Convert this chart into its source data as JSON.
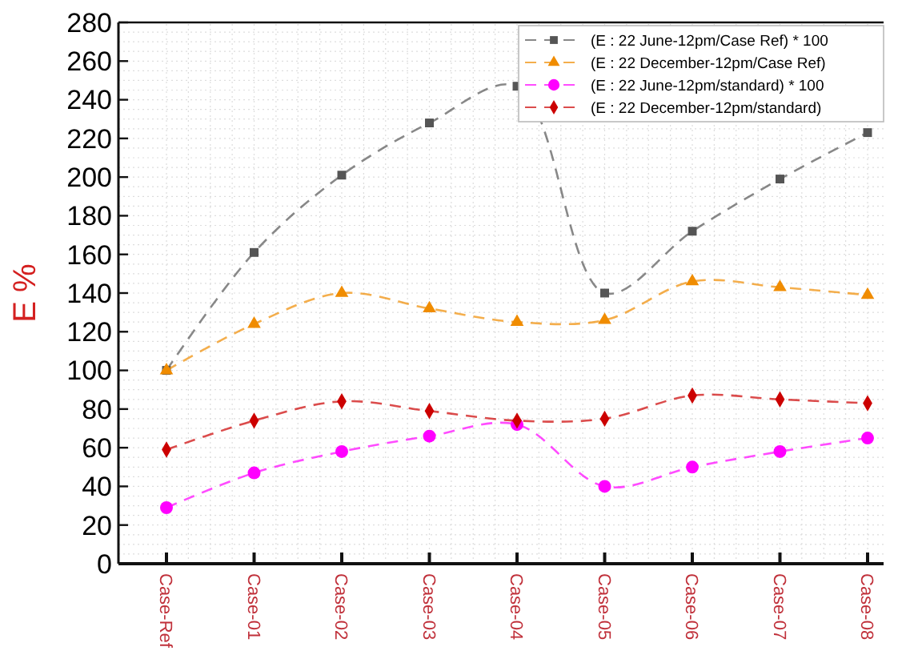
{
  "chart_data": {
    "type": "line",
    "ylabel": "E %",
    "categories": [
      "Case-Ref",
      "Case-01",
      "Case-02",
      "Case-03",
      "Case-04",
      "Case-05",
      "Case-06",
      "Case-07",
      "Case-08"
    ],
    "series": [
      {
        "name": "(E : 22 June-12pm/Case Ref) * 100",
        "color": "#555555",
        "marker": "square",
        "line_style": "dashed",
        "values": [
          100,
          161,
          201,
          228,
          247,
          140,
          172,
          199,
          223
        ]
      },
      {
        "name": "(E : 22 December-12pm/Case Ref)",
        "color": "#f08c00",
        "marker": "triangle",
        "line_style": "dashed",
        "values": [
          100,
          124,
          140,
          132,
          125,
          126,
          146,
          143,
          139
        ]
      },
      {
        "name": "(E : 22 June-12pm/standard) * 100",
        "color": "#ff00ff",
        "marker": "circle",
        "line_style": "dashed",
        "values": [
          29,
          47,
          58,
          66,
          72,
          40,
          50,
          58,
          65
        ]
      },
      {
        "name": "(E : 22 December-12pm/standard)",
        "color": "#cc0000",
        "marker": "diamond",
        "line_style": "dashed",
        "values": [
          59,
          74,
          84,
          79,
          74,
          75,
          87,
          85,
          83
        ]
      }
    ],
    "ylim": [
      0,
      280
    ],
    "yticks": [
      0,
      20,
      40,
      60,
      80,
      100,
      120,
      140,
      160,
      180,
      200,
      220,
      240,
      260,
      280
    ],
    "grid": true,
    "legend": "top right"
  }
}
